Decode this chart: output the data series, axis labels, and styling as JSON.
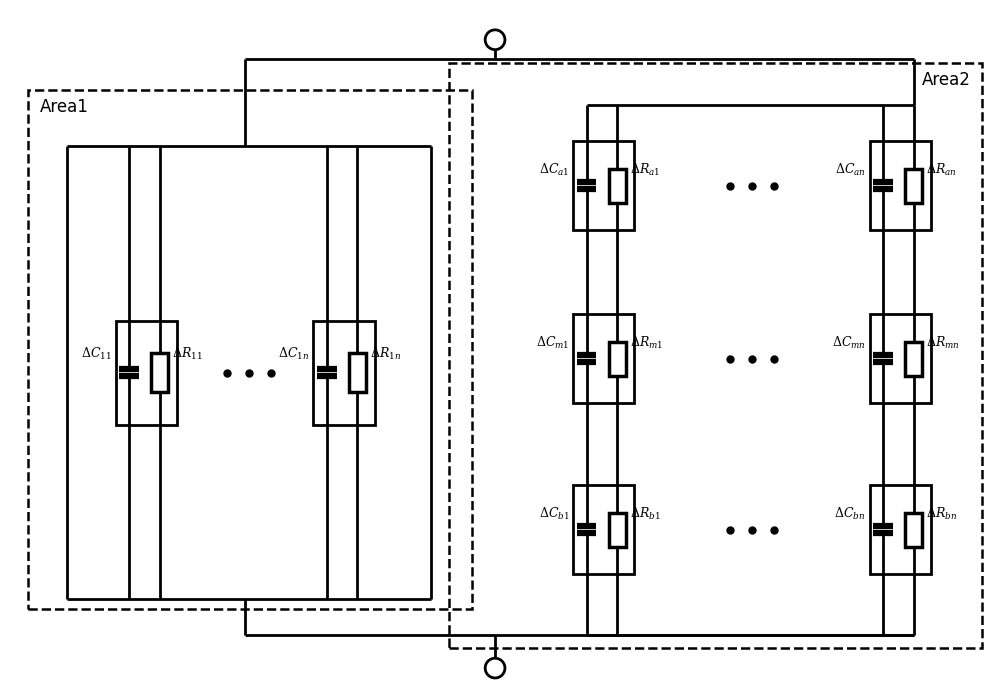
{
  "bg_color": "#ffffff",
  "line_color": "#000000",
  "lw": 2.0,
  "fig_width": 10.0,
  "fig_height": 6.94,
  "area1_label": "Area1",
  "area2_label": "Area2"
}
